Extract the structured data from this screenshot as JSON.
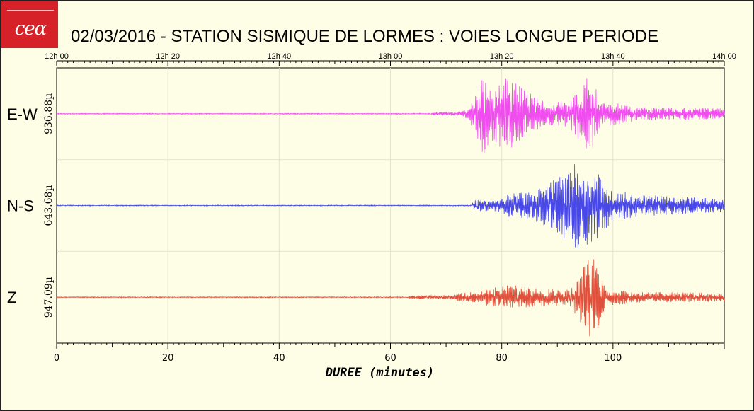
{
  "logo": {
    "text": "cea"
  },
  "title": "02/03/2016  -  STATION SISMIQUE DE LORMES : VOIES LONGUE PERIODE",
  "chart_data": {
    "type": "line",
    "title": "02/03/2016  -  STATION SISMIQUE DE LORMES : VOIES LONGUE PERIODE",
    "xlabel": "DUREE (minutes)",
    "xlim": [
      0,
      120
    ],
    "x_ticks": [
      0,
      20,
      40,
      60,
      80,
      100
    ],
    "top_time_ticks": [
      {
        "minute": 0,
        "label": "12h 00"
      },
      {
        "minute": 20,
        "label": "12h 20"
      },
      {
        "minute": 40,
        "label": "12h 40"
      },
      {
        "minute": 60,
        "label": "13h 00"
      },
      {
        "minute": 80,
        "label": "13h 20"
      },
      {
        "minute": 100,
        "label": "13h 40"
      },
      {
        "minute": 120,
        "label": "14h 00"
      }
    ],
    "grid": true,
    "series": [
      {
        "name": "E-W",
        "amplitude_label": "936.88µ",
        "color": "#f04cf0",
        "envelope": [
          {
            "x": 0,
            "amp": 0.01
          },
          {
            "x": 67,
            "amp": 0.01
          },
          {
            "x": 68,
            "amp": 0.04
          },
          {
            "x": 72,
            "amp": 0.04
          },
          {
            "x": 74,
            "amp": 0.12
          },
          {
            "x": 75.5,
            "amp": 0.55
          },
          {
            "x": 76.5,
            "amp": 1.0
          },
          {
            "x": 78,
            "amp": 0.6
          },
          {
            "x": 81,
            "amp": 0.9
          },
          {
            "x": 84,
            "amp": 0.55
          },
          {
            "x": 88,
            "amp": 0.25
          },
          {
            "x": 92,
            "amp": 0.3
          },
          {
            "x": 96,
            "amp": 0.95
          },
          {
            "x": 98,
            "amp": 0.3
          },
          {
            "x": 105,
            "amp": 0.15
          },
          {
            "x": 120,
            "amp": 0.12
          }
        ]
      },
      {
        "name": "N-S",
        "amplitude_label": "643.68µ",
        "color": "#4848e8",
        "envelope": [
          {
            "x": 0,
            "amp": 0.01
          },
          {
            "x": 74.5,
            "amp": 0.01
          },
          {
            "x": 75,
            "amp": 0.12
          },
          {
            "x": 80,
            "amp": 0.15
          },
          {
            "x": 81.5,
            "amp": 0.3
          },
          {
            "x": 85,
            "amp": 0.3
          },
          {
            "x": 89,
            "amp": 0.55
          },
          {
            "x": 93.5,
            "amp": 1.0
          },
          {
            "x": 96.5,
            "amp": 0.85
          },
          {
            "x": 100,
            "amp": 0.35
          },
          {
            "x": 105,
            "amp": 0.25
          },
          {
            "x": 120,
            "amp": 0.15
          }
        ]
      },
      {
        "name": "Z",
        "amplitude_label": "947.09µ",
        "color": "#e0503c",
        "envelope": [
          {
            "x": 0,
            "amp": 0.01
          },
          {
            "x": 63,
            "amp": 0.01
          },
          {
            "x": 64,
            "amp": 0.04
          },
          {
            "x": 70,
            "amp": 0.05
          },
          {
            "x": 76,
            "amp": 0.15
          },
          {
            "x": 81,
            "amp": 0.3
          },
          {
            "x": 85,
            "amp": 0.22
          },
          {
            "x": 92,
            "amp": 0.18
          },
          {
            "x": 96.3,
            "amp": 1.0
          },
          {
            "x": 99,
            "amp": 0.2
          },
          {
            "x": 105,
            "amp": 0.12
          },
          {
            "x": 120,
            "amp": 0.1
          }
        ]
      }
    ]
  }
}
